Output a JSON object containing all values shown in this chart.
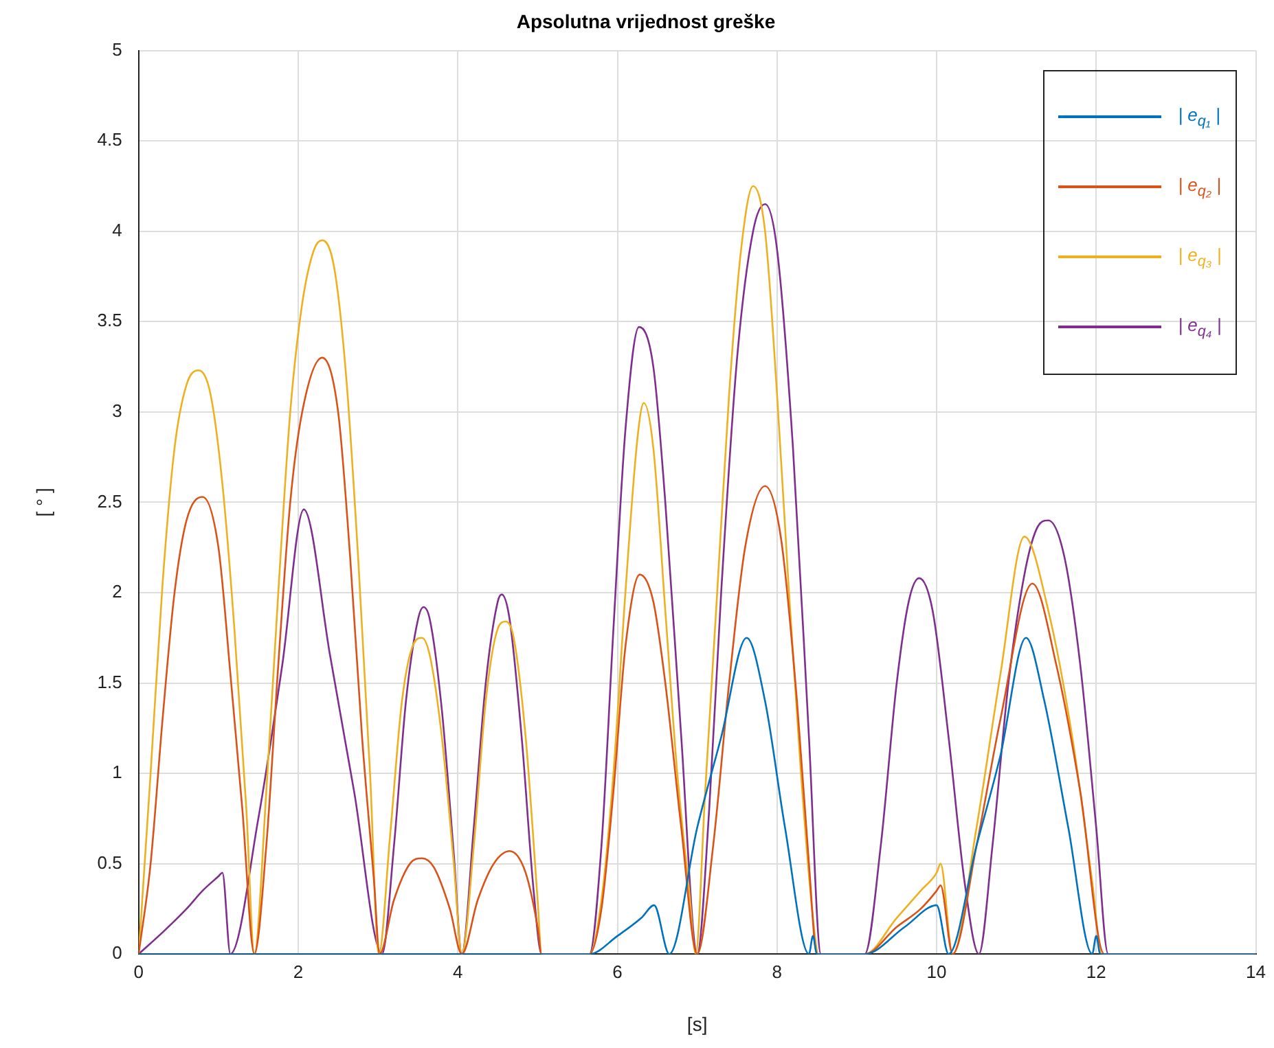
{
  "chart_data": {
    "type": "line",
    "title": "Apsolutna vrijednost greške",
    "xlabel": "[s]",
    "ylabel": "[ ° ]",
    "xlim": [
      0,
      14
    ],
    "xticks": [
      0,
      2,
      4,
      6,
      8,
      10,
      12,
      14
    ],
    "ylim": [
      0,
      5
    ],
    "yticks": [
      0,
      0.5,
      1,
      1.5,
      2,
      2.5,
      3,
      3.5,
      4,
      4.5,
      5
    ],
    "grid": true,
    "legend": "top right",
    "marker": "none",
    "line_style": "solid",
    "series": [
      {
        "name": "| e$_{q₁}$ |",
        "color": "#0072bd",
        "x": [
          0,
          5.65,
          6.0,
          6.3,
          6.46,
          6.65,
          7.0,
          7.3,
          7.62,
          7.85,
          8.1,
          8.4,
          8.45,
          8.5,
          9.1,
          9.6,
          10.0,
          10.15,
          10.5,
          10.8,
          11.12,
          11.35,
          11.65,
          11.95,
          12.0,
          12.05,
          14
        ],
        "values": [
          0,
          0,
          0.1,
          0.2,
          0.27,
          0,
          0.7,
          1.2,
          1.75,
          1.4,
          0.7,
          0,
          0.1,
          0,
          0,
          0.15,
          0.27,
          0,
          0.6,
          1.1,
          1.75,
          1.4,
          0.7,
          0,
          0.1,
          0,
          0
        ]
      },
      {
        "name": "| e$_{q₂}$ |",
        "color": "#d95319",
        "x": [
          0,
          0.15,
          0.3,
          0.45,
          0.6,
          0.8,
          1.0,
          1.15,
          1.3,
          1.45,
          1.6,
          1.75,
          1.9,
          2.05,
          2.3,
          2.5,
          2.65,
          2.8,
          2.95,
          3.02,
          3.2,
          3.4,
          3.55,
          3.7,
          3.9,
          4.05,
          4.25,
          4.45,
          4.65,
          4.85,
          5.0,
          5.05,
          5.65,
          5.8,
          5.95,
          6.1,
          6.28,
          6.45,
          6.6,
          6.8,
          7.0,
          7.2,
          7.4,
          7.6,
          7.85,
          8.05,
          8.25,
          8.4,
          8.5,
          9.1,
          9.5,
          9.8,
          10.0,
          10.05,
          10.2,
          10.5,
          10.8,
          11.2,
          11.5,
          11.8,
          12.1,
          14
        ],
        "values": [
          0,
          0.5,
          1.3,
          2.0,
          2.4,
          2.53,
          2.25,
          1.55,
          0.8,
          0,
          0.6,
          1.6,
          2.5,
          3.0,
          3.3,
          3.0,
          2.2,
          1.2,
          0.4,
          0,
          0.3,
          0.5,
          0.53,
          0.48,
          0.25,
          0,
          0.3,
          0.5,
          0.57,
          0.45,
          0.15,
          0,
          0,
          0.25,
          0.9,
          1.7,
          2.1,
          1.95,
          1.5,
          0.7,
          0,
          0.6,
          1.5,
          2.25,
          2.59,
          2.3,
          1.4,
          0.5,
          0,
          0,
          0.15,
          0.25,
          0.35,
          0.38,
          0,
          0.6,
          1.3,
          2.05,
          1.6,
          0.9,
          0,
          0
        ]
      },
      {
        "name": "| e$_{q₃}$ |",
        "color": "#edb120",
        "x": [
          0,
          0.15,
          0.3,
          0.45,
          0.6,
          0.75,
          0.9,
          1.05,
          1.2,
          1.35,
          1.45,
          1.6,
          1.75,
          1.9,
          2.05,
          2.2,
          2.3,
          2.45,
          2.6,
          2.75,
          2.9,
          3.01,
          3.15,
          3.3,
          3.45,
          3.55,
          3.65,
          3.8,
          3.95,
          4.05,
          4.2,
          4.35,
          4.5,
          4.6,
          4.7,
          4.85,
          5.0,
          5.05,
          5.65,
          5.8,
          5.95,
          6.1,
          6.25,
          6.33,
          6.45,
          6.6,
          6.75,
          6.9,
          6.98,
          7.1,
          7.25,
          7.4,
          7.55,
          7.7,
          7.85,
          8.0,
          8.15,
          8.3,
          8.45,
          8.52,
          9.1,
          9.5,
          9.8,
          10.0,
          10.05,
          10.2,
          10.5,
          10.8,
          11.1,
          11.4,
          11.7,
          11.95,
          12.07,
          14
        ],
        "values": [
          0,
          1.0,
          2.05,
          2.8,
          3.15,
          3.23,
          3.1,
          2.6,
          1.8,
          0.8,
          0,
          0.9,
          2.0,
          3.0,
          3.6,
          3.9,
          3.95,
          3.8,
          3.2,
          2.2,
          1.0,
          0,
          0.65,
          1.4,
          1.72,
          1.75,
          1.65,
          1.2,
          0.5,
          0,
          0.6,
          1.4,
          1.8,
          1.84,
          1.75,
          1.2,
          0.3,
          0,
          0,
          0.3,
          1.0,
          2.0,
          2.85,
          3.05,
          2.8,
          1.9,
          1.0,
          0.35,
          0,
          0.9,
          2.0,
          3.1,
          3.9,
          4.25,
          4.0,
          3.1,
          2.0,
          1.0,
          0.2,
          0,
          0,
          0.2,
          0.35,
          0.45,
          0.5,
          0,
          0.7,
          1.55,
          2.31,
          1.9,
          1.2,
          0.4,
          0,
          0
        ]
      },
      {
        "name": "| e$_{q₄}$ |",
        "color": "#7e2f8e",
        "x": [
          0,
          0.3,
          0.6,
          0.8,
          1.0,
          1.05,
          1.15,
          1.5,
          1.8,
          2.07,
          2.4,
          2.7,
          3.05,
          3.2,
          3.35,
          3.5,
          3.57,
          3.65,
          3.8,
          3.95,
          4.05,
          4.2,
          4.35,
          4.5,
          4.55,
          4.65,
          4.8,
          4.95,
          5.05,
          5.65,
          5.8,
          5.95,
          6.1,
          6.27,
          6.45,
          6.6,
          6.8,
          7.0,
          7.15,
          7.3,
          7.5,
          7.7,
          7.85,
          8.0,
          8.2,
          8.4,
          8.55,
          9.1,
          9.3,
          9.5,
          9.65,
          9.78,
          9.95,
          10.15,
          10.35,
          10.53,
          10.7,
          10.9,
          11.1,
          11.25,
          11.4,
          11.6,
          11.8,
          12.0,
          12.15,
          14
        ],
        "values": [
          0,
          0.12,
          0.25,
          0.35,
          0.43,
          0.45,
          0,
          0.75,
          1.6,
          2.46,
          1.65,
          0.9,
          0,
          0.6,
          1.4,
          1.85,
          1.92,
          1.85,
          1.35,
          0.55,
          0,
          0.7,
          1.5,
          1.95,
          1.99,
          1.85,
          1.2,
          0.35,
          0,
          0,
          0.6,
          1.8,
          2.9,
          3.47,
          3.25,
          2.5,
          1.2,
          0,
          0.8,
          2.0,
          3.3,
          4.0,
          4.15,
          3.9,
          2.8,
          1.2,
          0,
          0,
          0.6,
          1.5,
          1.95,
          2.08,
          1.9,
          1.2,
          0.4,
          0,
          0.6,
          1.5,
          2.1,
          2.35,
          2.4,
          2.2,
          1.6,
          0.7,
          0,
          0
        ]
      }
    ]
  }
}
